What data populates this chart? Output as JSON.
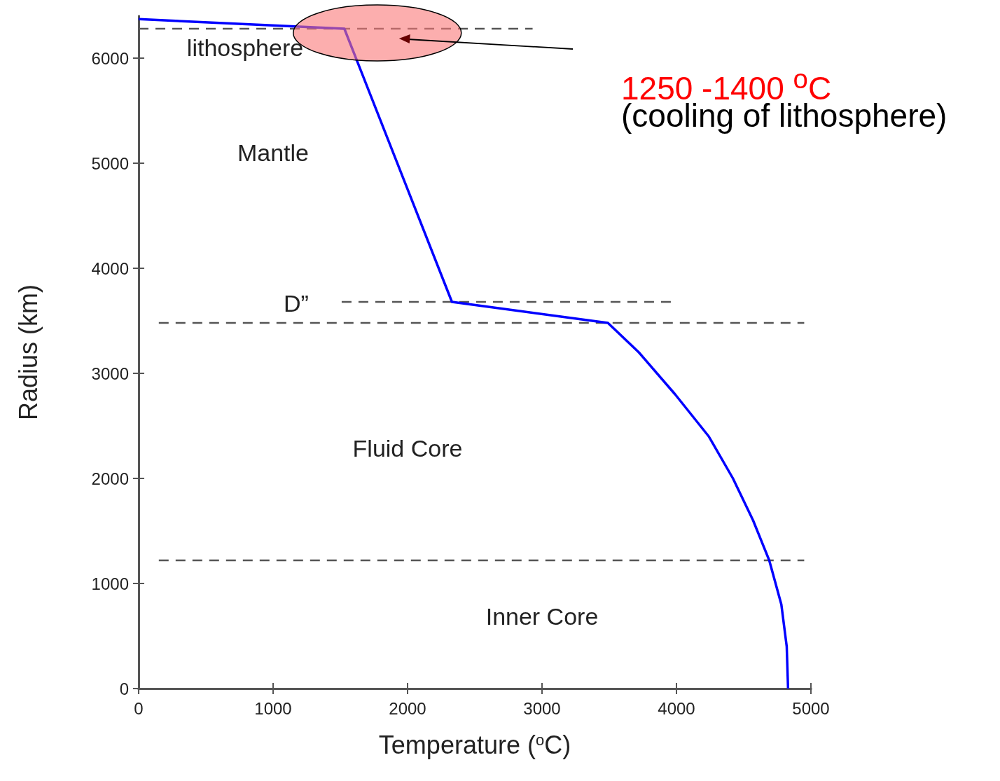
{
  "chart_data": {
    "type": "line",
    "xlabel": "Temperature ($^{o}$C)",
    "ylabel": "Radius (km)",
    "xlim": [
      0,
      5000
    ],
    "xticks": [
      0,
      1000,
      2000,
      3000,
      4000,
      5000
    ],
    "ylim": [
      0,
      6400
    ],
    "yticks": [
      0,
      1000,
      2000,
      3000,
      4000,
      5000,
      6000
    ],
    "grid": false,
    "marker": "none",
    "series": [
      {
        "color": "#0000ff",
        "line_style": "solid",
        "x": [
          0,
          1530,
          2330,
          3490,
          3720,
          3990,
          4240,
          4420,
          4570,
          4690,
          4780,
          4820,
          4830
        ],
        "values": [
          6371,
          6280,
          3680,
          3480,
          3200,
          2800,
          2400,
          2000,
          1600,
          1220,
          800,
          400,
          0
        ]
      },
      {
        "color": "#555555",
        "line_style": "dashed",
        "x": [
          0,
          2930
        ],
        "values": [
          6280,
          6280
        ]
      },
      {
        "color": "#555555",
        "line_style": "dashed",
        "x": [
          1510,
          3970
        ],
        "values": [
          3680,
          3680
        ]
      },
      {
        "color": "#555555",
        "line_style": "dashed",
        "x": [
          150,
          4950
        ],
        "values": [
          3480,
          3480
        ]
      },
      {
        "color": "#555555",
        "line_style": "dashed",
        "x": [
          150,
          4950
        ],
        "values": [
          1220,
          1220
        ]
      }
    ],
    "annotations": [
      "lithosphere",
      "Mantle",
      "D”",
      "Fluid Core",
      "Inner Core",
      "1250 -1400 $^{o}$C",
      "(cooling of lithosphere)"
    ]
  }
}
